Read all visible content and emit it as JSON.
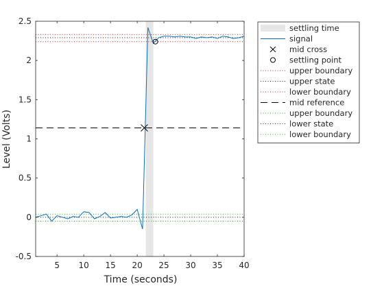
{
  "chart_data": {
    "type": "line",
    "xlabel": "Time (seconds)",
    "ylabel": "Level (Volts)",
    "xlim": [
      1,
      40
    ],
    "ylim": [
      -0.5,
      2.5
    ],
    "xticks": [
      5,
      10,
      15,
      20,
      25,
      30,
      35,
      40
    ],
    "xtick_labels": [
      "5",
      "10",
      "15",
      "20",
      "25",
      "30",
      "35",
      "40"
    ],
    "yticks": [
      -0.5,
      0,
      0.5,
      1,
      1.5,
      2,
      2.5
    ],
    "ytick_labels": [
      "-0.5",
      "0",
      "0.5",
      "1",
      "1.5",
      "2",
      "2.5"
    ],
    "grid": false,
    "legend_position": "outside-right-top",
    "series": [
      {
        "name": "signal",
        "color": "#0072bd",
        "x": [
          1,
          2,
          3,
          4,
          5,
          6,
          7,
          8,
          9,
          10,
          11,
          12,
          13,
          14,
          15,
          16,
          17,
          18,
          19,
          20,
          21,
          22,
          23,
          24,
          25,
          26,
          27,
          28,
          29,
          30,
          31,
          32,
          33,
          34,
          35,
          36,
          37,
          38,
          39,
          40
        ],
        "y": [
          0.0,
          0.02,
          0.04,
          -0.05,
          0.02,
          0.0,
          -0.02,
          0.01,
          0.0,
          0.07,
          0.06,
          -0.02,
          0.01,
          0.06,
          -0.01,
          0.0,
          0.01,
          0.0,
          0.03,
          0.1,
          -0.15,
          2.42,
          2.22,
          2.29,
          2.31,
          2.31,
          2.3,
          2.31,
          2.3,
          2.3,
          2.28,
          2.3,
          2.29,
          2.3,
          2.28,
          2.31,
          2.3,
          2.28,
          2.29,
          2.31
        ]
      }
    ],
    "settling_time": {
      "label": "settling time",
      "x_start": 21.6,
      "x_end": 23.0,
      "color": "#e6e6e6"
    },
    "mid_cross": {
      "label": "mid cross",
      "x": 21.33,
      "y": 1.14
    },
    "settling_point": {
      "label": "settling point",
      "x": 23.4,
      "y": 2.24
    },
    "reference_lines": [
      {
        "label": "upper boundary",
        "y": 2.33,
        "color": "#e02020",
        "style": "dotted"
      },
      {
        "label": "upper state",
        "y": 2.29,
        "color": "#202020",
        "style": "dotted"
      },
      {
        "label": "lower boundary",
        "y": 2.24,
        "color": "#e02020",
        "style": "dotted"
      },
      {
        "label": "mid reference",
        "y": 1.14,
        "color": "#000000",
        "style": "dashed"
      },
      {
        "label": "upper boundary",
        "y": 0.04,
        "color": "#20b020",
        "style": "dotted"
      },
      {
        "label": "lower state",
        "y": 0.0,
        "color": "#202020",
        "style": "dotted"
      },
      {
        "label": "lower boundary",
        "y": -0.05,
        "color": "#20b020",
        "style": "dotted"
      }
    ]
  }
}
